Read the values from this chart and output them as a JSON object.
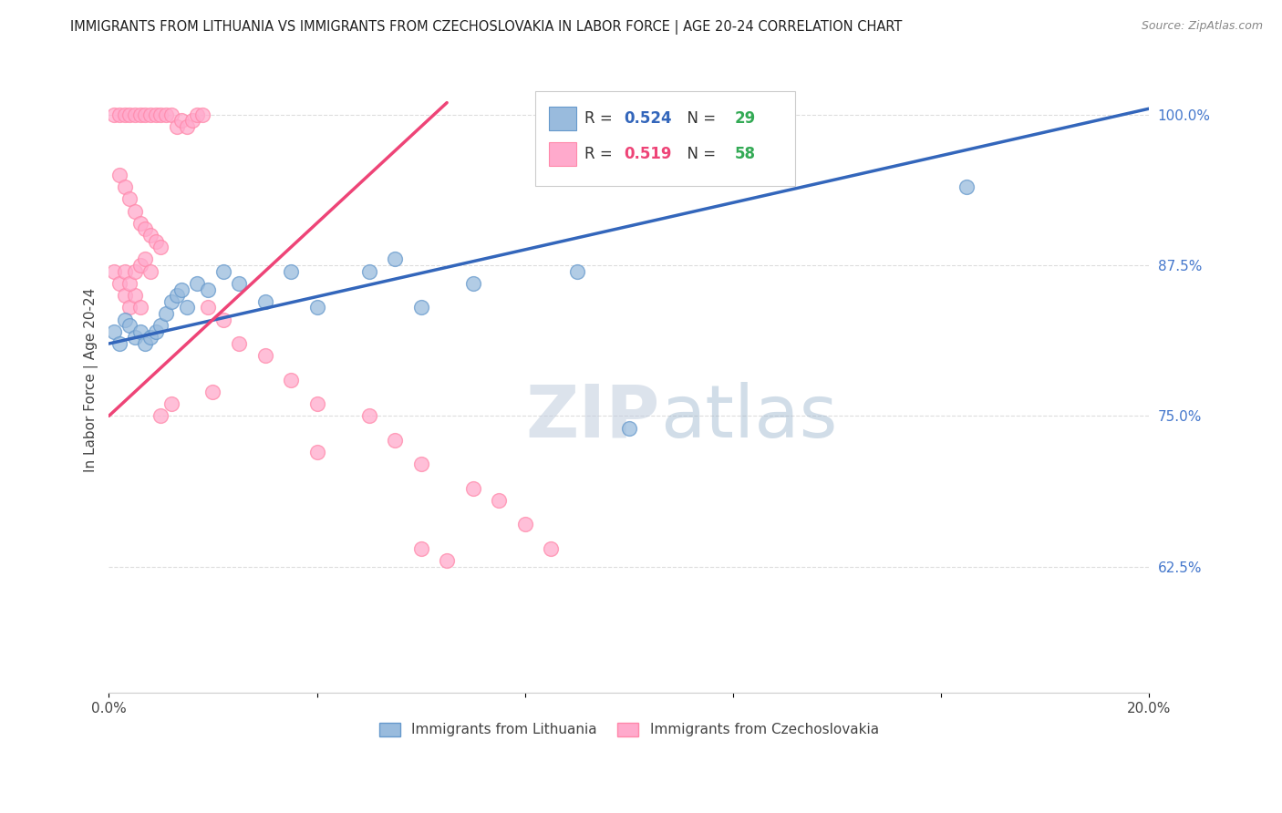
{
  "title": "IMMIGRANTS FROM LITHUANIA VS IMMIGRANTS FROM CZECHOSLOVAKIA IN LABOR FORCE | AGE 20-24 CORRELATION CHART",
  "source": "Source: ZipAtlas.com",
  "ylabel": "In Labor Force | Age 20-24",
  "ylabel_ticks": [
    "100.0%",
    "87.5%",
    "75.0%",
    "62.5%"
  ],
  "y_tick_vals": [
    1.0,
    0.875,
    0.75,
    0.625
  ],
  "xlim": [
    0.0,
    0.2
  ],
  "ylim": [
    0.52,
    1.04
  ],
  "legend_R_blue": "0.524",
  "legend_N_blue": "29",
  "legend_R_pink": "0.519",
  "legend_N_pink": "58",
  "legend_label_blue": "Immigrants from Lithuania",
  "legend_label_pink": "Immigrants from Czechoslovakia",
  "blue_color": "#99BBDD",
  "pink_color": "#FFAACC",
  "blue_edge": "#6699CC",
  "pink_edge": "#FF88AA",
  "blue_line_color": "#3366BB",
  "pink_line_color": "#EE4477",
  "green_color": "#33AA55",
  "watermark_color": "#C8D8EE",
  "background_color": "#ffffff",
  "grid_color": "#dddddd",
  "title_color": "#222222",
  "right_axis_color": "#4477CC",
  "lit_x": [
    0.001,
    0.002,
    0.003,
    0.004,
    0.005,
    0.006,
    0.007,
    0.008,
    0.009,
    0.01,
    0.011,
    0.012,
    0.013,
    0.014,
    0.015,
    0.017,
    0.019,
    0.022,
    0.025,
    0.03,
    0.035,
    0.04,
    0.05,
    0.055,
    0.06,
    0.07,
    0.09,
    0.1,
    0.165
  ],
  "lit_y": [
    0.82,
    0.81,
    0.83,
    0.825,
    0.815,
    0.82,
    0.81,
    0.815,
    0.82,
    0.825,
    0.835,
    0.845,
    0.85,
    0.855,
    0.84,
    0.86,
    0.855,
    0.87,
    0.86,
    0.845,
    0.87,
    0.84,
    0.87,
    0.88,
    0.84,
    0.86,
    0.87,
    0.74,
    0.94
  ],
  "cze_x": [
    0.001,
    0.002,
    0.003,
    0.004,
    0.005,
    0.006,
    0.007,
    0.008,
    0.009,
    0.01,
    0.011,
    0.012,
    0.013,
    0.014,
    0.015,
    0.016,
    0.017,
    0.018,
    0.002,
    0.003,
    0.004,
    0.005,
    0.006,
    0.007,
    0.008,
    0.009,
    0.01,
    0.001,
    0.002,
    0.003,
    0.004,
    0.005,
    0.006,
    0.003,
    0.004,
    0.005,
    0.006,
    0.007,
    0.008,
    0.019,
    0.022,
    0.025,
    0.03,
    0.035,
    0.04,
    0.05,
    0.055,
    0.06,
    0.07,
    0.075,
    0.08,
    0.085,
    0.04,
    0.06,
    0.065,
    0.01,
    0.012,
    0.02
  ],
  "cze_y": [
    1.0,
    1.0,
    1.0,
    1.0,
    1.0,
    1.0,
    1.0,
    1.0,
    1.0,
    1.0,
    1.0,
    1.0,
    0.99,
    0.995,
    0.99,
    0.995,
    1.0,
    1.0,
    0.95,
    0.94,
    0.93,
    0.92,
    0.91,
    0.905,
    0.9,
    0.895,
    0.89,
    0.87,
    0.86,
    0.85,
    0.84,
    0.85,
    0.84,
    0.87,
    0.86,
    0.87,
    0.875,
    0.88,
    0.87,
    0.84,
    0.83,
    0.81,
    0.8,
    0.78,
    0.76,
    0.75,
    0.73,
    0.71,
    0.69,
    0.68,
    0.66,
    0.64,
    0.72,
    0.64,
    0.63,
    0.75,
    0.76,
    0.77
  ],
  "blue_line_x": [
    0.0,
    0.2
  ],
  "blue_line_y": [
    0.81,
    1.005
  ],
  "pink_line_x": [
    0.0,
    0.065
  ],
  "pink_line_y": [
    0.75,
    1.01
  ]
}
